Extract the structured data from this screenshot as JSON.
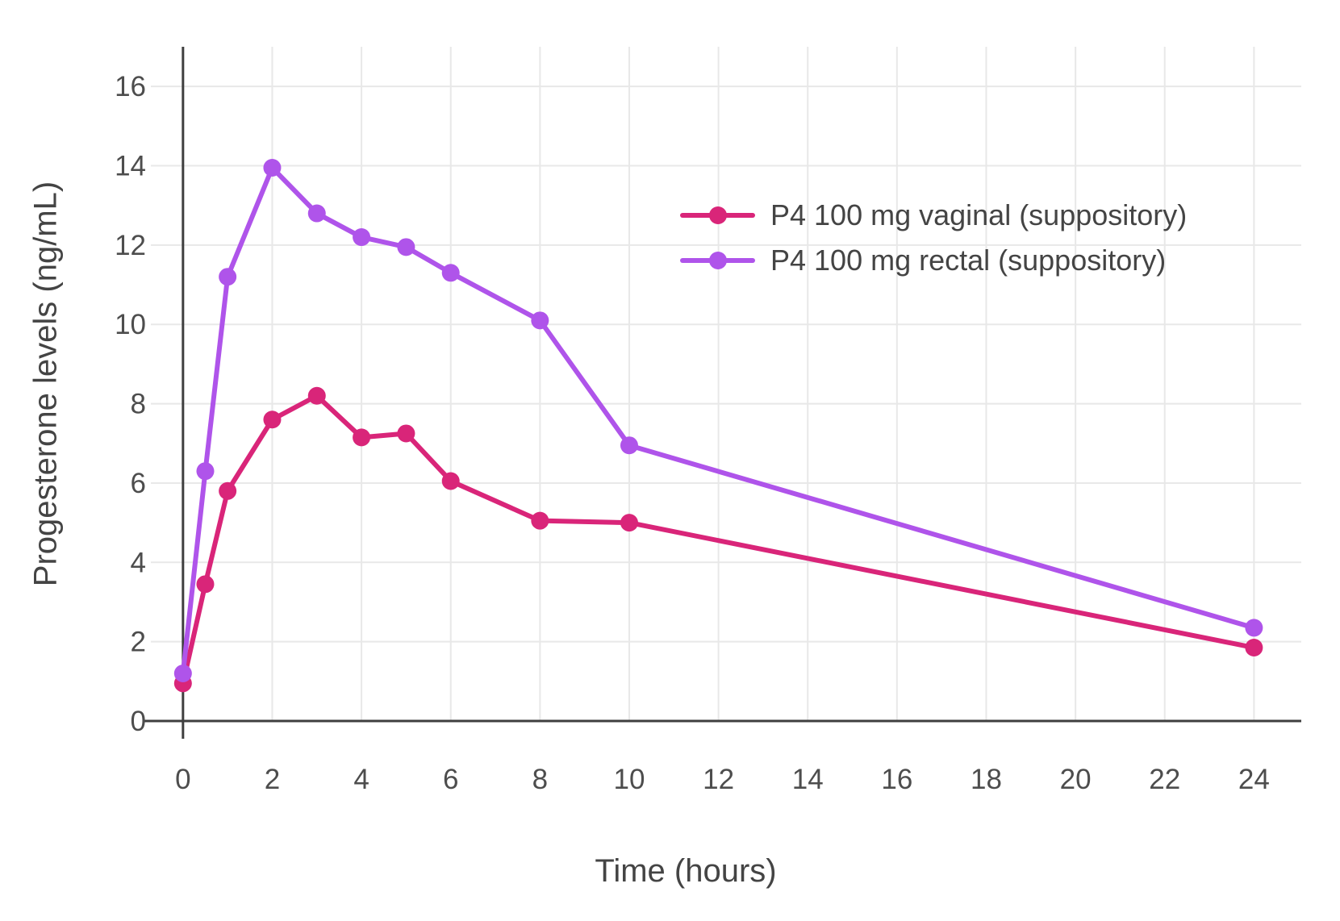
{
  "chart_data": {
    "type": "line",
    "title": "",
    "xlabel": "Time (hours)",
    "ylabel": "Progesterone levels (ng/mL)",
    "x_ticks": [
      0,
      2,
      4,
      6,
      8,
      10,
      12,
      14,
      16,
      18,
      20,
      22,
      24
    ],
    "y_ticks": [
      0,
      2,
      4,
      6,
      8,
      10,
      12,
      14,
      16
    ],
    "xlim": [
      -0.72,
      25.06
    ],
    "ylim": [
      0,
      17
    ],
    "grid": true,
    "legend_position": "top-right-inside",
    "series": [
      {
        "name": "P4 100 mg vaginal (suppository)",
        "color": "#d92579",
        "x": [
          0,
          0.5,
          1,
          2,
          3,
          4,
          5,
          6,
          8,
          10,
          24
        ],
        "y": [
          0.95,
          3.45,
          5.8,
          7.6,
          8.2,
          7.15,
          7.25,
          6.05,
          5.05,
          5.0,
          1.85
        ]
      },
      {
        "name": "P4 100 mg rectal (suppository)",
        "color": "#af54ea",
        "x": [
          0,
          0.5,
          1,
          2,
          3,
          4,
          5,
          6,
          8,
          10,
          24
        ],
        "y": [
          1.2,
          6.3,
          11.2,
          13.95,
          12.8,
          12.2,
          11.95,
          11.3,
          10.1,
          6.95,
          2.35
        ]
      }
    ],
    "colors": {
      "axis": "#3f3f3f",
      "grid": "#e8e8e8",
      "tick_text": "#4d4d4d",
      "title_text": "#444444"
    }
  }
}
